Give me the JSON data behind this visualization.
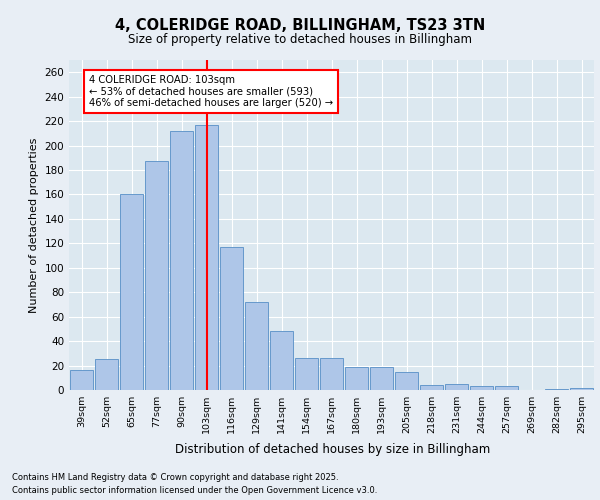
{
  "title": "4, COLERIDGE ROAD, BILLINGHAM, TS23 3TN",
  "subtitle": "Size of property relative to detached houses in Billingham",
  "xlabel": "Distribution of detached houses by size in Billingham",
  "ylabel": "Number of detached properties",
  "categories": [
    "39sqm",
    "52sqm",
    "65sqm",
    "77sqm",
    "90sqm",
    "103sqm",
    "116sqm",
    "129sqm",
    "141sqm",
    "154sqm",
    "167sqm",
    "180sqm",
    "193sqm",
    "205sqm",
    "218sqm",
    "231sqm",
    "244sqm",
    "257sqm",
    "269sqm",
    "282sqm",
    "295sqm"
  ],
  "values": [
    16,
    25,
    160,
    187,
    212,
    217,
    117,
    72,
    48,
    26,
    26,
    19,
    19,
    15,
    4,
    5,
    3,
    3,
    0,
    1,
    2
  ],
  "bar_color": "#aec6e8",
  "bar_edge_color": "#6699cc",
  "property_line_index": 5,
  "pct_smaller": "53%",
  "pct_smaller_count": 593,
  "pct_larger_semi": "46%",
  "pct_larger_semi_count": 520,
  "ylim": [
    0,
    270
  ],
  "yticks": [
    0,
    20,
    40,
    60,
    80,
    100,
    120,
    140,
    160,
    180,
    200,
    220,
    240,
    260
  ],
  "footer_line1": "Contains HM Land Registry data © Crown copyright and database right 2025.",
  "footer_line2": "Contains public sector information licensed under the Open Government Licence v3.0.",
  "fig_bg_color": "#e8eef5",
  "plot_bg_color": "#dce8f0"
}
